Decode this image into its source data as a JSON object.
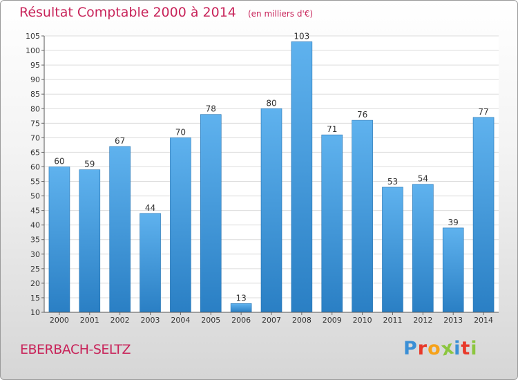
{
  "chart_data": {
    "type": "bar",
    "title": "Résultat Comptable 2000 à 2014",
    "unit_label": "(en milliers d'€)",
    "categories": [
      "2000",
      "2001",
      "2002",
      "2003",
      "2004",
      "2005",
      "2006",
      "2007",
      "2008",
      "2009",
      "2010",
      "2011",
      "2012",
      "2013",
      "2014"
    ],
    "values": [
      60,
      59,
      67,
      44,
      70,
      78,
      13,
      80,
      103,
      71,
      76,
      53,
      54,
      39,
      77
    ],
    "xlabel": "",
    "ylabel": "",
    "ylim": [
      10,
      105
    ],
    "yticks": [
      10,
      15,
      20,
      25,
      30,
      35,
      40,
      45,
      50,
      55,
      60,
      65,
      70,
      75,
      80,
      85,
      90,
      95,
      100,
      105
    ],
    "grid": true,
    "bar_color": "#3a95d8"
  },
  "footer": {
    "commune": "EBERBACH-SELTZ",
    "logo_text": "Proxiti",
    "logo_letters": [
      {
        "ch": "P",
        "color": "#3a8fd6"
      },
      {
        "ch": "r",
        "color": "#e8392a"
      },
      {
        "ch": "o",
        "color": "#f6a21a"
      },
      {
        "ch": "x",
        "color": "#8cc63f"
      },
      {
        "ch": "i",
        "color": "#3a8fd6"
      },
      {
        "ch": "t",
        "color": "#e8392a"
      },
      {
        "ch": "i",
        "color": "#8cc63f"
      }
    ]
  }
}
